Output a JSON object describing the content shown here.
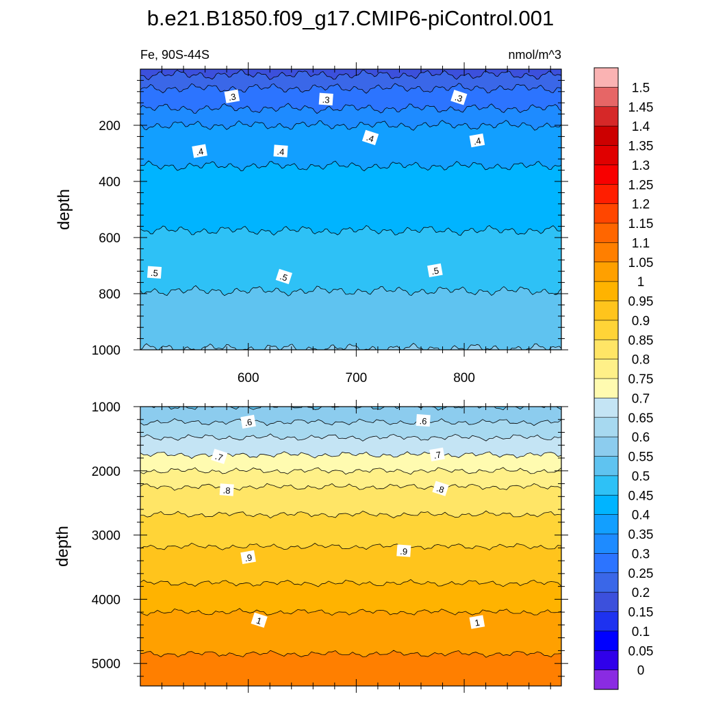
{
  "chart_data": {
    "type": "contour",
    "title": "b.e21.B1850.f09_g17.CMIP6-piControl.001",
    "left_subtitle": "Fe, 90S-44S",
    "right_subtitle": "nmol/m^3",
    "ylabel": "depth",
    "xlim": [
      500,
      890
    ],
    "xticks": [
      600,
      700,
      800
    ],
    "xtick_labels": [
      "600",
      "700",
      "800"
    ],
    "panels": [
      {
        "name": "upper",
        "ylim": [
          0,
          1000
        ],
        "yticks": [
          200,
          400,
          600,
          800,
          1000
        ],
        "ytick_labels": [
          "200",
          "400",
          "600",
          "800",
          "1000"
        ],
        "show_xtick_labels": true,
        "contours": [
          {
            "level": 0.2,
            "depth": 20
          },
          {
            "level": 0.25,
            "depth": 68
          },
          {
            "level": 0.3,
            "depth": 140
          },
          {
            "level": 0.35,
            "depth": 200
          },
          {
            "level": 0.4,
            "depth": 345
          },
          {
            "level": 0.45,
            "depth": 575
          },
          {
            "level": 0.5,
            "depth": 790
          },
          {
            "level": 0.55,
            "depth": 995
          }
        ],
        "contour_labels": [
          {
            "text": ".3",
            "x": 585,
            "depth": 98
          },
          {
            "text": ".3",
            "x": 672,
            "depth": 108
          },
          {
            "text": ".3",
            "x": 795,
            "depth": 102
          },
          {
            "text": ".4",
            "x": 555,
            "depth": 293
          },
          {
            "text": ".4",
            "x": 630,
            "depth": 293
          },
          {
            "text": ".4",
            "x": 713,
            "depth": 245
          },
          {
            "text": ".4",
            "x": 812,
            "depth": 255
          },
          {
            "text": ".5",
            "x": 513,
            "depth": 725
          },
          {
            "text": ".5",
            "x": 633,
            "depth": 740
          },
          {
            "text": ".5",
            "x": 773,
            "depth": 718
          }
        ]
      },
      {
        "name": "lower",
        "ylim": [
          1000,
          5350
        ],
        "yticks": [
          1000,
          2000,
          3000,
          4000,
          5000
        ],
        "ytick_labels": [
          "1000",
          "2000",
          "3000",
          "4000",
          "5000"
        ],
        "show_xtick_labels": false,
        "contours": [
          {
            "level": 0.55,
            "depth": 1000
          },
          {
            "level": 0.6,
            "depth": 1240
          },
          {
            "level": 0.65,
            "depth": 1480
          },
          {
            "level": 0.7,
            "depth": 1750
          },
          {
            "level": 0.75,
            "depth": 2000
          },
          {
            "level": 0.8,
            "depth": 2250
          },
          {
            "level": 0.85,
            "depth": 2680
          },
          {
            "level": 0.9,
            "depth": 3180
          },
          {
            "level": 0.95,
            "depth": 3750
          },
          {
            "level": 1.0,
            "depth": 4200
          },
          {
            "level": 1.05,
            "depth": 4850
          }
        ],
        "contour_labels": [
          {
            "text": ".6",
            "x": 600,
            "depth": 1240
          },
          {
            "text": ".6",
            "x": 762,
            "depth": 1220
          },
          {
            "text": ".7",
            "x": 573,
            "depth": 1780
          },
          {
            "text": ".7",
            "x": 775,
            "depth": 1750
          },
          {
            "text": ".8",
            "x": 580,
            "depth": 2300
          },
          {
            "text": ".8",
            "x": 778,
            "depth": 2280
          },
          {
            "text": ".9",
            "x": 600,
            "depth": 3350
          },
          {
            "text": ".9",
            "x": 744,
            "depth": 3250
          },
          {
            "text": "1",
            "x": 610,
            "depth": 4330
          },
          {
            "text": "1",
            "x": 812,
            "depth": 4360
          }
        ]
      }
    ],
    "colorbar": {
      "labels": [
        "1.5",
        "1.45",
        "1.4",
        "1.35",
        "1.3",
        "1.25",
        "1.2",
        "1.15",
        "1.1",
        "1.05",
        "1",
        "0.95",
        "0.9",
        "0.85",
        "0.8",
        "0.75",
        "0.7",
        "0.65",
        "0.6",
        "0.55",
        "0.5",
        "0.45",
        "0.4",
        "0.35",
        "0.3",
        "0.25",
        "0.2",
        "0.15",
        "0.1",
        "0.05",
        "0"
      ],
      "colors": [
        "#fab3b3",
        "#e66666",
        "#d62828",
        "#cc0000",
        "#e00000",
        "#f80000",
        "#ff1e00",
        "#ff4600",
        "#ff6600",
        "#ff7f00",
        "#ffa000",
        "#ffb300",
        "#ffc41c",
        "#ffd437",
        "#ffe566",
        "#fff088",
        "#fffbb0",
        "#c4e4f4",
        "#a7d9f0",
        "#8cccee",
        "#5fc3f0",
        "#2ec1f6",
        "#00b4ff",
        "#129fff",
        "#1e8bff",
        "#2c74ff",
        "#3a67e8",
        "#3c50dc",
        "#1e32f0",
        "#0000ff",
        "#3000ea",
        "#8a2be2"
      ]
    }
  }
}
